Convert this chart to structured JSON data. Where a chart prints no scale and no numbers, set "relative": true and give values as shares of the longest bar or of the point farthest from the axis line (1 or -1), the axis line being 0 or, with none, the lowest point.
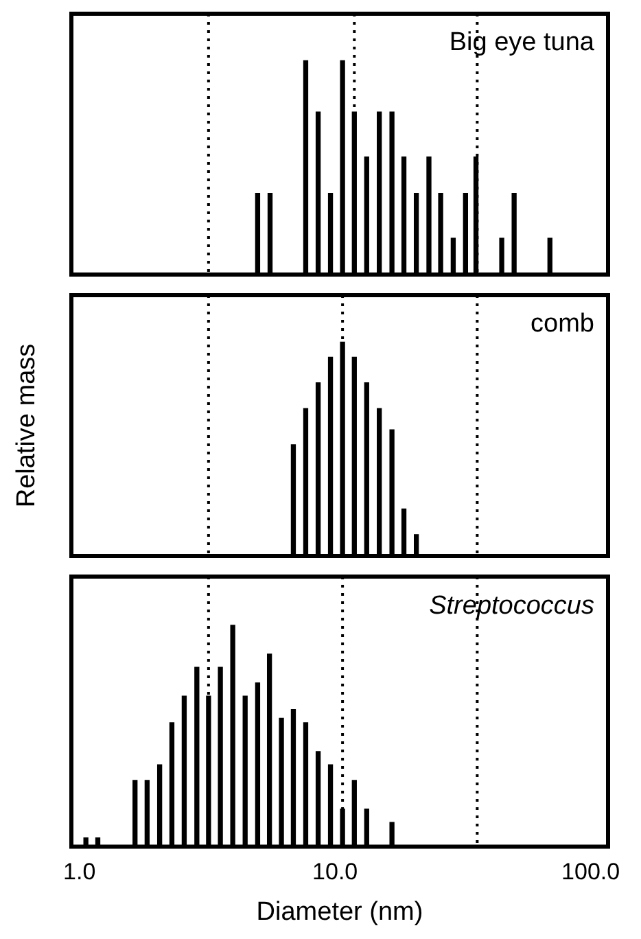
{
  "chart_data": [
    {
      "type": "bar",
      "relative": true,
      "color": "#000000",
      "log": "x",
      "xlim": [
        0.93,
        117
      ],
      "tick_labels": false,
      "annotations": [
        "Big eye tuna"
      ],
      "ref_lines": [
        {
          "axis": "x",
          "value": 3.2,
          "color": "#000000",
          "line_style": "dotted"
        },
        {
          "axis": "x",
          "value": 11.9,
          "color": "#000000",
          "line_style": "dotted"
        },
        {
          "axis": "x",
          "value": 36,
          "color": "#000000",
          "line_style": "dotted"
        }
      ],
      "x": [
        4.98,
        5.57,
        7.68,
        8.59,
        9.6,
        10.7,
        11.9,
        13.3,
        14.9,
        16.7,
        18.6,
        20.8,
        23.3,
        25.9,
        29.0,
        32.4,
        35.6,
        44.9,
        50.2,
        69.3
      ],
      "values": [
        0.38,
        0.38,
        1,
        0.76,
        0.38,
        1,
        0.76,
        0.55,
        0.76,
        0.76,
        0.55,
        0.38,
        0.55,
        0.38,
        0.17,
        0.38,
        0.55,
        0.17,
        0.38,
        0.17
      ]
    },
    {
      "type": "bar",
      "relative": true,
      "color": "#000000",
      "log": "x",
      "xlim": [
        0.93,
        117
      ],
      "tick_labels": false,
      "ylabel": "Relative mass",
      "annotations": [
        "comb"
      ],
      "ref_lines": [
        {
          "axis": "x",
          "value": 3.2,
          "color": "#000000",
          "line_style": "dotted"
        },
        {
          "axis": "x",
          "value": 10.7,
          "color": "#000000",
          "line_style": "dotted"
        },
        {
          "axis": "x",
          "value": 36,
          "color": "#000000",
          "line_style": "dotted"
        }
      ],
      "x": [
        6.87,
        7.68,
        8.59,
        9.6,
        10.7,
        11.9,
        13.3,
        14.9,
        16.7,
        18.6,
        20.8
      ],
      "values": [
        0.52,
        0.69,
        0.81,
        0.93,
        1,
        0.93,
        0.81,
        0.69,
        0.59,
        0.22,
        0.1
      ]
    },
    {
      "type": "bar",
      "relative": true,
      "color": "#000000",
      "log": "x",
      "xlim": [
        0.93,
        117
      ],
      "xticks": [
        {
          "value": 1,
          "label": "1.0"
        },
        {
          "value": 10,
          "label": "10.0"
        },
        {
          "value": 100,
          "label": "100.0"
        }
      ],
      "tick_labels": "x",
      "xlabel": "Diameter (nm)",
      "annotations": [
        "Streptococcus"
      ],
      "ref_lines": [
        {
          "axis": "x",
          "value": 3.2,
          "color": "#000000",
          "line_style": "dotted"
        },
        {
          "axis": "x",
          "value": 10.7,
          "color": "#000000",
          "line_style": "dotted"
        },
        {
          "axis": "x",
          "value": 36,
          "color": "#000000",
          "line_style": "dotted"
        }
      ],
      "x": [
        1.06,
        1.18,
        1.65,
        1.84,
        2.06,
        2.3,
        2.57,
        2.88,
        3.2,
        3.56,
        3.98,
        4.45,
        4.98,
        5.54,
        6.17,
        6.87,
        7.68,
        8.59,
        9.6,
        10.7,
        11.9,
        13.3,
        16.7
      ],
      "values": [
        0.04,
        0.04,
        0.3,
        0.3,
        0.37,
        0.56,
        0.68,
        0.81,
        0.68,
        0.81,
        1,
        0.68,
        0.74,
        0.87,
        0.58,
        0.62,
        0.56,
        0.43,
        0.37,
        0.17,
        0.3,
        0.17,
        0.11
      ]
    }
  ]
}
